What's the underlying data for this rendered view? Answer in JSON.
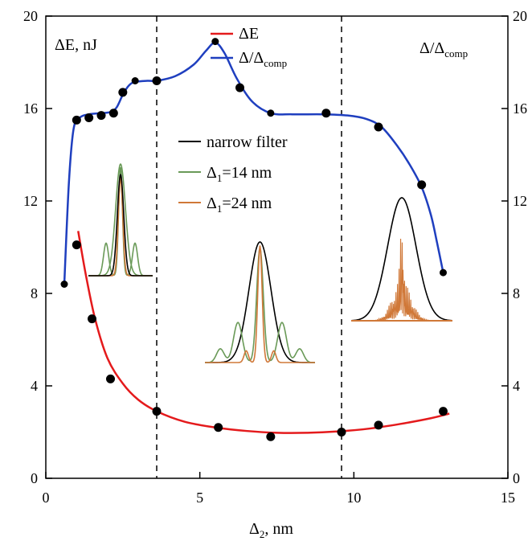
{
  "chart_data": {
    "type": "scatter",
    "xlabel": "Δ",
    "xlabel_sub": "2",
    "xlabel_unit": ", nm",
    "ylabel_left": "ΔE, nJ",
    "ylabel_right": "Δ/Δ",
    "ylabel_right_sub": "comp",
    "xlim": [
      0,
      15
    ],
    "ylim": [
      0,
      20
    ],
    "x_ticks": [
      "0",
      "5",
      "10",
      "15"
    ],
    "y_ticks": [
      "0",
      "4",
      "8",
      "12",
      "16",
      "20"
    ],
    "vlines": [
      3.6,
      9.6
    ],
    "series": [
      {
        "name": "ΔE",
        "color": "#e41a1c",
        "x": [
          1.0,
          1.5,
          2.1,
          3.6,
          5.6,
          7.3,
          9.6,
          10.8,
          12.9
        ],
        "y": [
          10.1,
          6.9,
          4.3,
          2.9,
          2.2,
          1.8,
          2.0,
          2.3,
          2.9
        ],
        "fit_x": [
          1.05,
          1.3,
          1.6,
          2.0,
          2.5,
          3.0,
          3.6,
          4.5,
          5.5,
          6.5,
          7.5,
          8.5,
          9.5,
          10.5,
          11.5,
          12.5,
          13.1
        ],
        "fit_y": [
          10.7,
          8.8,
          6.9,
          5.2,
          4.1,
          3.4,
          2.9,
          2.45,
          2.2,
          2.05,
          1.97,
          1.97,
          2.03,
          2.15,
          2.35,
          2.6,
          2.8
        ]
      },
      {
        "name": "Δ/Δcomp",
        "name_base": "Δ/Δ",
        "name_sub": "comp",
        "color": "#1f3fbf",
        "x": [
          0.6,
          1.0,
          1.4,
          1.8,
          2.2,
          2.5,
          2.9,
          3.6,
          5.5,
          6.3,
          7.3,
          9.1,
          10.8,
          12.2,
          12.9
        ],
        "y": [
          8.4,
          15.5,
          15.6,
          15.7,
          15.8,
          16.7,
          17.2,
          17.2,
          18.9,
          16.9,
          15.8,
          15.8,
          15.2,
          12.7,
          8.9
        ],
        "fit_x": [
          0.6,
          0.75,
          0.9,
          1.1,
          1.4,
          1.8,
          2.1,
          2.3,
          2.5,
          2.7,
          2.9,
          3.3,
          3.6,
          4.2,
          4.8,
          5.2,
          5.5,
          5.8,
          6.2,
          6.7,
          7.3,
          8.0,
          9.0,
          9.8,
          10.4,
          10.9,
          11.4,
          11.8,
          12.2,
          12.5,
          12.7,
          12.9
        ],
        "fit_y": [
          8.4,
          12.8,
          15.1,
          15.6,
          15.75,
          15.8,
          15.85,
          16.05,
          16.6,
          17.0,
          17.15,
          17.2,
          17.2,
          17.4,
          17.9,
          18.5,
          18.85,
          18.4,
          17.3,
          16.3,
          15.8,
          15.75,
          15.75,
          15.7,
          15.55,
          15.2,
          14.4,
          13.6,
          12.6,
          11.4,
          10.2,
          8.9
        ]
      }
    ],
    "insets": {
      "legend": [
        {
          "label": "narrow filter",
          "color": "#000000",
          "sub": "",
          "base": "narrow filter",
          "suffix": ""
        },
        {
          "label": "Δ1=14 nm",
          "color": "#6a9a58",
          "base": "Δ",
          "sub": "1",
          "suffix": "=14 nm"
        },
        {
          "label": "Δ1=24 nm",
          "color": "#d07838",
          "base": "Δ",
          "sub": "1",
          "suffix": "=24 nm"
        }
      ]
    },
    "colors": {
      "red_fit": "#e41a1c",
      "blue_fit": "#1f3fbf",
      "marker": "#000000",
      "green": "#6a9a58",
      "orange": "#d07838",
      "narrow": "#000000"
    }
  }
}
